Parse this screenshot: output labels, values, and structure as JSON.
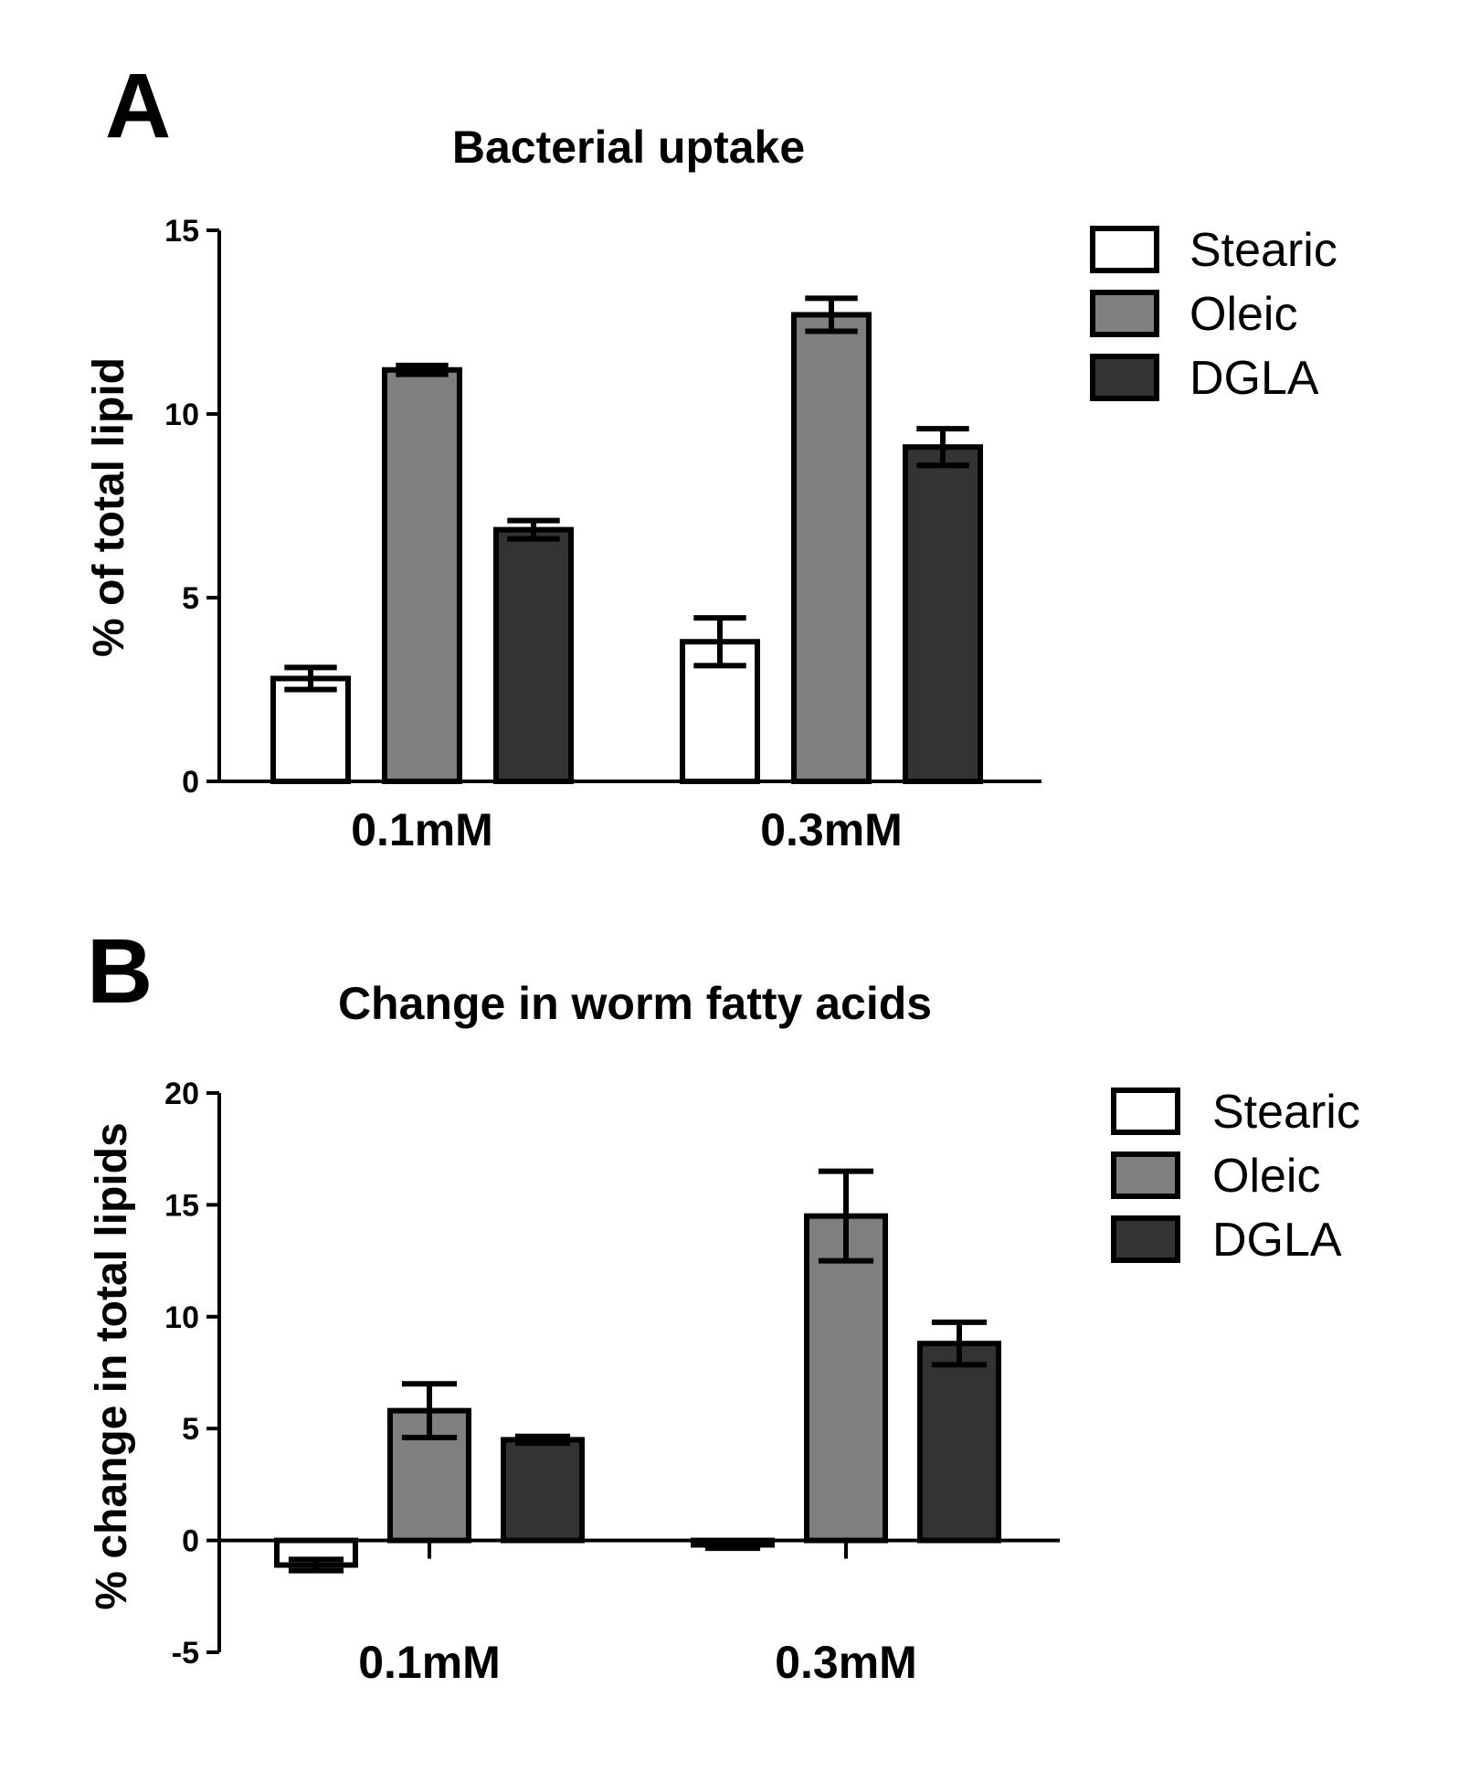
{
  "chart_data": [
    {
      "panel": "A",
      "type": "bar",
      "title": "Bacterial uptake",
      "xlabel": "",
      "ylabel": "%  of total lipid",
      "ylim": [
        0,
        15
      ],
      "yticks": [
        0,
        5,
        10,
        15
      ],
      "categories": [
        "0.1mM",
        "0.3mM"
      ],
      "series": [
        {
          "name": "Stearic",
          "color": "#ffffff",
          "values": [
            2.8,
            3.8
          ],
          "errors": [
            0.3,
            0.65
          ]
        },
        {
          "name": "Oleic",
          "color": "#7f7f7f",
          "values": [
            11.2,
            12.7
          ],
          "errors": [
            0.12,
            0.45
          ]
        },
        {
          "name": "DGLA",
          "color": "#333333",
          "values": [
            6.85,
            9.1
          ],
          "errors": [
            0.25,
            0.5
          ]
        }
      ],
      "legend_position": "top-right"
    },
    {
      "panel": "B",
      "type": "bar",
      "title": "Change in worm fatty acids",
      "xlabel": "",
      "ylabel": "% change in total lipids",
      "ylim": [
        -5,
        20
      ],
      "yticks": [
        -5,
        0,
        5,
        10,
        15,
        20
      ],
      "categories": [
        "0.1mM",
        "0.3mM"
      ],
      "series": [
        {
          "name": "Stearic",
          "color": "#ffffff",
          "values": [
            -1.1,
            -0.2
          ],
          "errors": [
            0.25,
            0.15
          ]
        },
        {
          "name": "Oleic",
          "color": "#7f7f7f",
          "values": [
            5.8,
            14.5
          ],
          "errors": [
            1.2,
            2.0
          ]
        },
        {
          "name": "DGLA",
          "color": "#333333",
          "values": [
            4.5,
            8.8
          ],
          "errors": [
            0.15,
            0.95
          ]
        }
      ],
      "legend_position": "top-right"
    }
  ]
}
